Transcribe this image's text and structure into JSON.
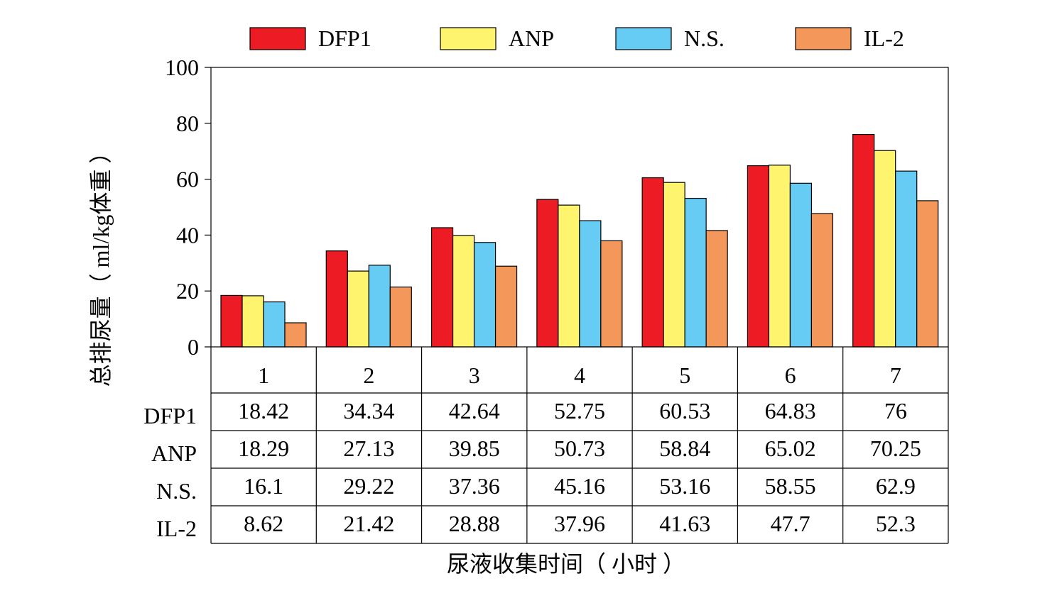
{
  "chart_data": {
    "type": "bar",
    "categories": [
      "1",
      "2",
      "3",
      "4",
      "5",
      "6",
      "7"
    ],
    "series": [
      {
        "name": "DFP1",
        "color": "#ed1c24",
        "values": [
          18.42,
          34.34,
          42.64,
          52.75,
          60.53,
          64.83,
          76
        ]
      },
      {
        "name": "ANP",
        "color": "#fff46e",
        "values": [
          18.29,
          27.13,
          39.85,
          50.73,
          58.84,
          65.02,
          70.25
        ]
      },
      {
        "name": "N.S.",
        "color": "#66ccf3",
        "values": [
          16.1,
          29.22,
          37.36,
          45.16,
          53.16,
          58.55,
          62.9
        ]
      },
      {
        "name": "IL-2",
        "color": "#f4975a",
        "values": [
          8.62,
          21.42,
          28.88,
          37.96,
          41.63,
          47.7,
          52.3
        ]
      }
    ],
    "table_labels": [
      "18.42",
      "34.34",
      "42.64",
      "52.75",
      "60.53",
      "64.83",
      "76",
      "18.29",
      "27.13",
      "39.85",
      "50.73",
      "58.84",
      "65.02",
      "70.25",
      "16.1",
      "29.22",
      "37.36",
      "45.16",
      "53.16",
      "58.55",
      "62.9",
      "8.62",
      "21.42",
      "28.88",
      "37.96",
      "41.63",
      "47.7",
      "52.3"
    ],
    "ylim": [
      0,
      100
    ],
    "yticks": [
      "0",
      "20",
      "40",
      "60",
      "80",
      "100"
    ],
    "ylabel": "总排尿量（ ml/kg体重 ）",
    "xlabel": "尿液收集时间（ 小时 ）",
    "legend_position": "top",
    "data_table": true,
    "grid": false
  }
}
